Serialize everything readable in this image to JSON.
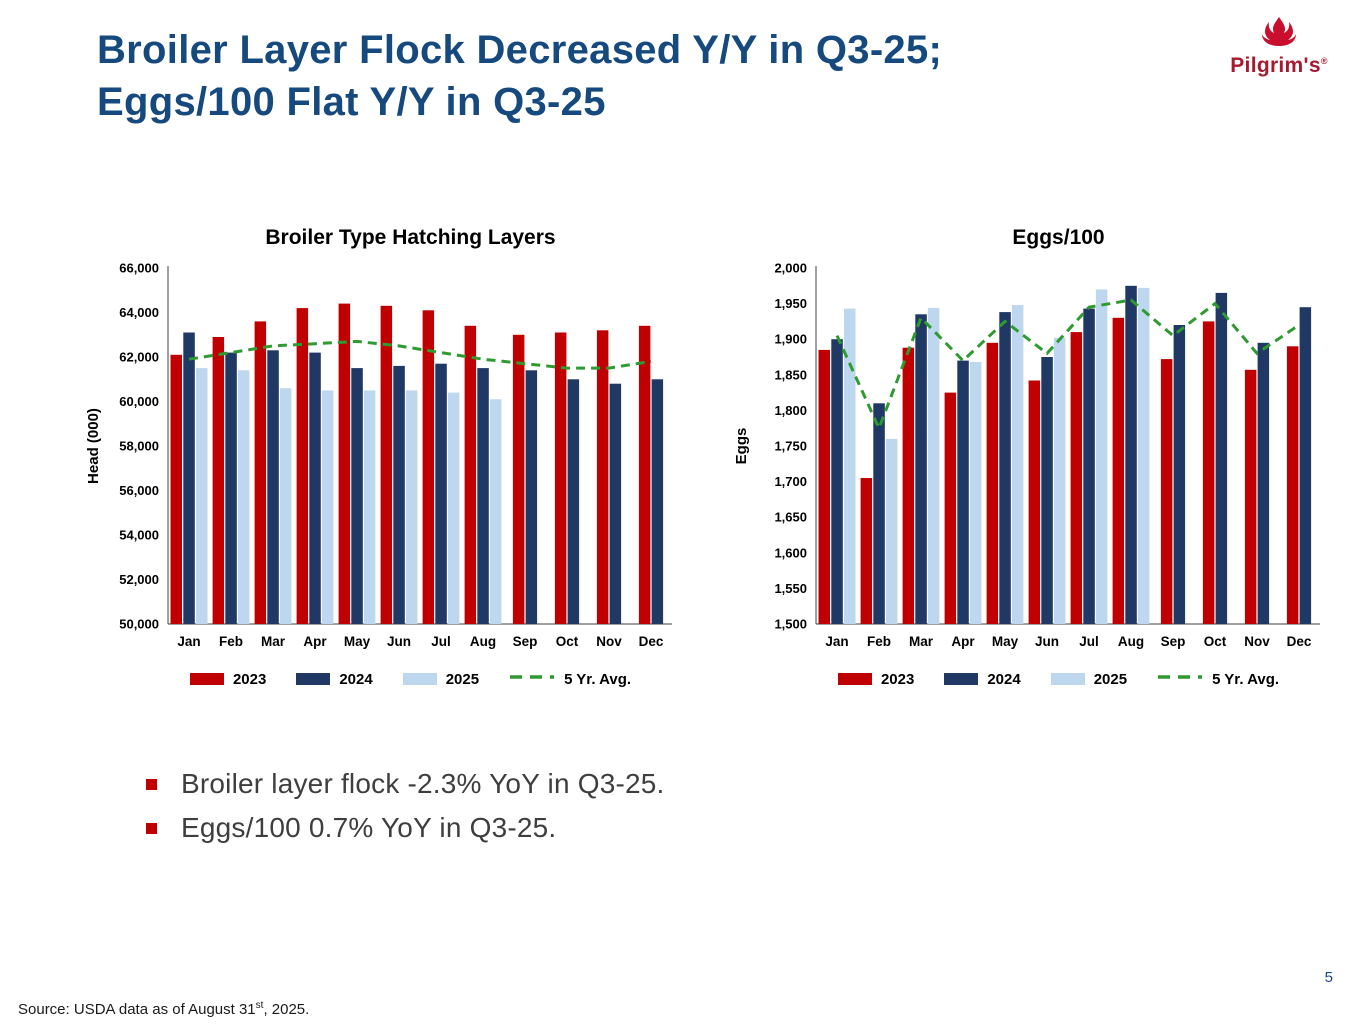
{
  "title": {
    "line1": "Broiler Layer Flock Decreased Y/Y in Q3-25;",
    "line2": "Eggs/100 Flat Y/Y in Q3-25"
  },
  "logo": {
    "text": "Pilgrim's",
    "registered": "®"
  },
  "bullets": [
    "Broiler layer flock -2.3% YoY in Q3-25.",
    "Eggs/100 0.7% YoY in Q3-25."
  ],
  "footer": {
    "source_prefix": "Source: USDA data as of August 31",
    "source_sup": "st",
    "source_suffix": ", 2025.",
    "page_number": "5"
  },
  "colors": {
    "title_blue": "#164A7F",
    "series_2023_red": "#C00000",
    "series_2024_navy": "#1F3864",
    "series_2025_lightblue": "#BDD7EE",
    "avg_green": "#2E9B30",
    "bullet_red": "#C00000",
    "logo_red": "#C8102E"
  },
  "chart_data": [
    {
      "type": "bar",
      "title": "Broiler Type Hatching Layers",
      "ylabel": "Head (000)",
      "categories": [
        "Jan",
        "Feb",
        "Mar",
        "Apr",
        "May",
        "Jun",
        "Jul",
        "Aug",
        "Sep",
        "Oct",
        "Nov",
        "Dec"
      ],
      "ylim": [
        50000,
        66000
      ],
      "ytick_values": [
        50000,
        52000,
        54000,
        56000,
        58000,
        60000,
        62000,
        64000,
        66000
      ],
      "ytick_labels": [
        "50,000",
        "52,000",
        "54,000",
        "56,000",
        "58,000",
        "60,000",
        "62,000",
        "64,000",
        "66,000"
      ],
      "grid": false,
      "legend_position": "bottom",
      "series": [
        {
          "name": "2023",
          "color": "#C00000",
          "values": [
            62100,
            62900,
            63600,
            64200,
            64400,
            64300,
            64100,
            63400,
            63000,
            63100,
            63200,
            63400
          ]
        },
        {
          "name": "2024",
          "color": "#1F3864",
          "values": [
            63100,
            62200,
            62300,
            62200,
            61500,
            61600,
            61700,
            61500,
            61400,
            61000,
            60800,
            61000
          ]
        },
        {
          "name": "2025",
          "color": "#BDD7EE",
          "values": [
            61500,
            61400,
            60600,
            60500,
            60500,
            60500,
            60400,
            60100,
            null,
            null,
            null,
            null
          ]
        }
      ],
      "avg_line": {
        "name": "5 Yr. Avg.",
        "color": "#2E9B30",
        "style": "dashed",
        "values": [
          61900,
          62200,
          62500,
          62600,
          62700,
          62500,
          62200,
          61900,
          61700,
          61500,
          61500,
          61800
        ]
      }
    },
    {
      "type": "bar",
      "title": "Eggs/100",
      "ylabel": "Eggs",
      "categories": [
        "Jan",
        "Feb",
        "Mar",
        "Apr",
        "May",
        "Jun",
        "Jul",
        "Aug",
        "Sep",
        "Oct",
        "Nov",
        "Dec"
      ],
      "ylim": [
        1500,
        2000
      ],
      "ytick_values": [
        1500,
        1550,
        1600,
        1650,
        1700,
        1750,
        1800,
        1850,
        1900,
        1950,
        2000
      ],
      "ytick_labels": [
        "1,500",
        "1,550",
        "1,600",
        "1,650",
        "1,700",
        "1,750",
        "1,800",
        "1,850",
        "1,900",
        "1,950",
        "2,000"
      ],
      "grid": false,
      "legend_position": "bottom",
      "series": [
        {
          "name": "2023",
          "color": "#C00000",
          "values": [
            1885,
            1705,
            1888,
            1825,
            1895,
            1842,
            1910,
            1930,
            1872,
            1925,
            1857,
            1890
          ]
        },
        {
          "name": "2024",
          "color": "#1F3864",
          "values": [
            1900,
            1810,
            1935,
            1870,
            1938,
            1875,
            1943,
            1975,
            1920,
            1965,
            1895,
            1945
          ]
        },
        {
          "name": "2025",
          "color": "#BDD7EE",
          "values": [
            1943,
            1760,
            1944,
            1868,
            1948,
            1902,
            1970,
            1972,
            null,
            null,
            null,
            null
          ]
        }
      ],
      "avg_line": {
        "name": "5 Yr. Avg.",
        "color": "#2E9B30",
        "style": "dashed",
        "values": [
          1905,
          1775,
          1930,
          1870,
          1925,
          1880,
          1945,
          1955,
          1905,
          1950,
          1880,
          1920
        ]
      }
    }
  ]
}
